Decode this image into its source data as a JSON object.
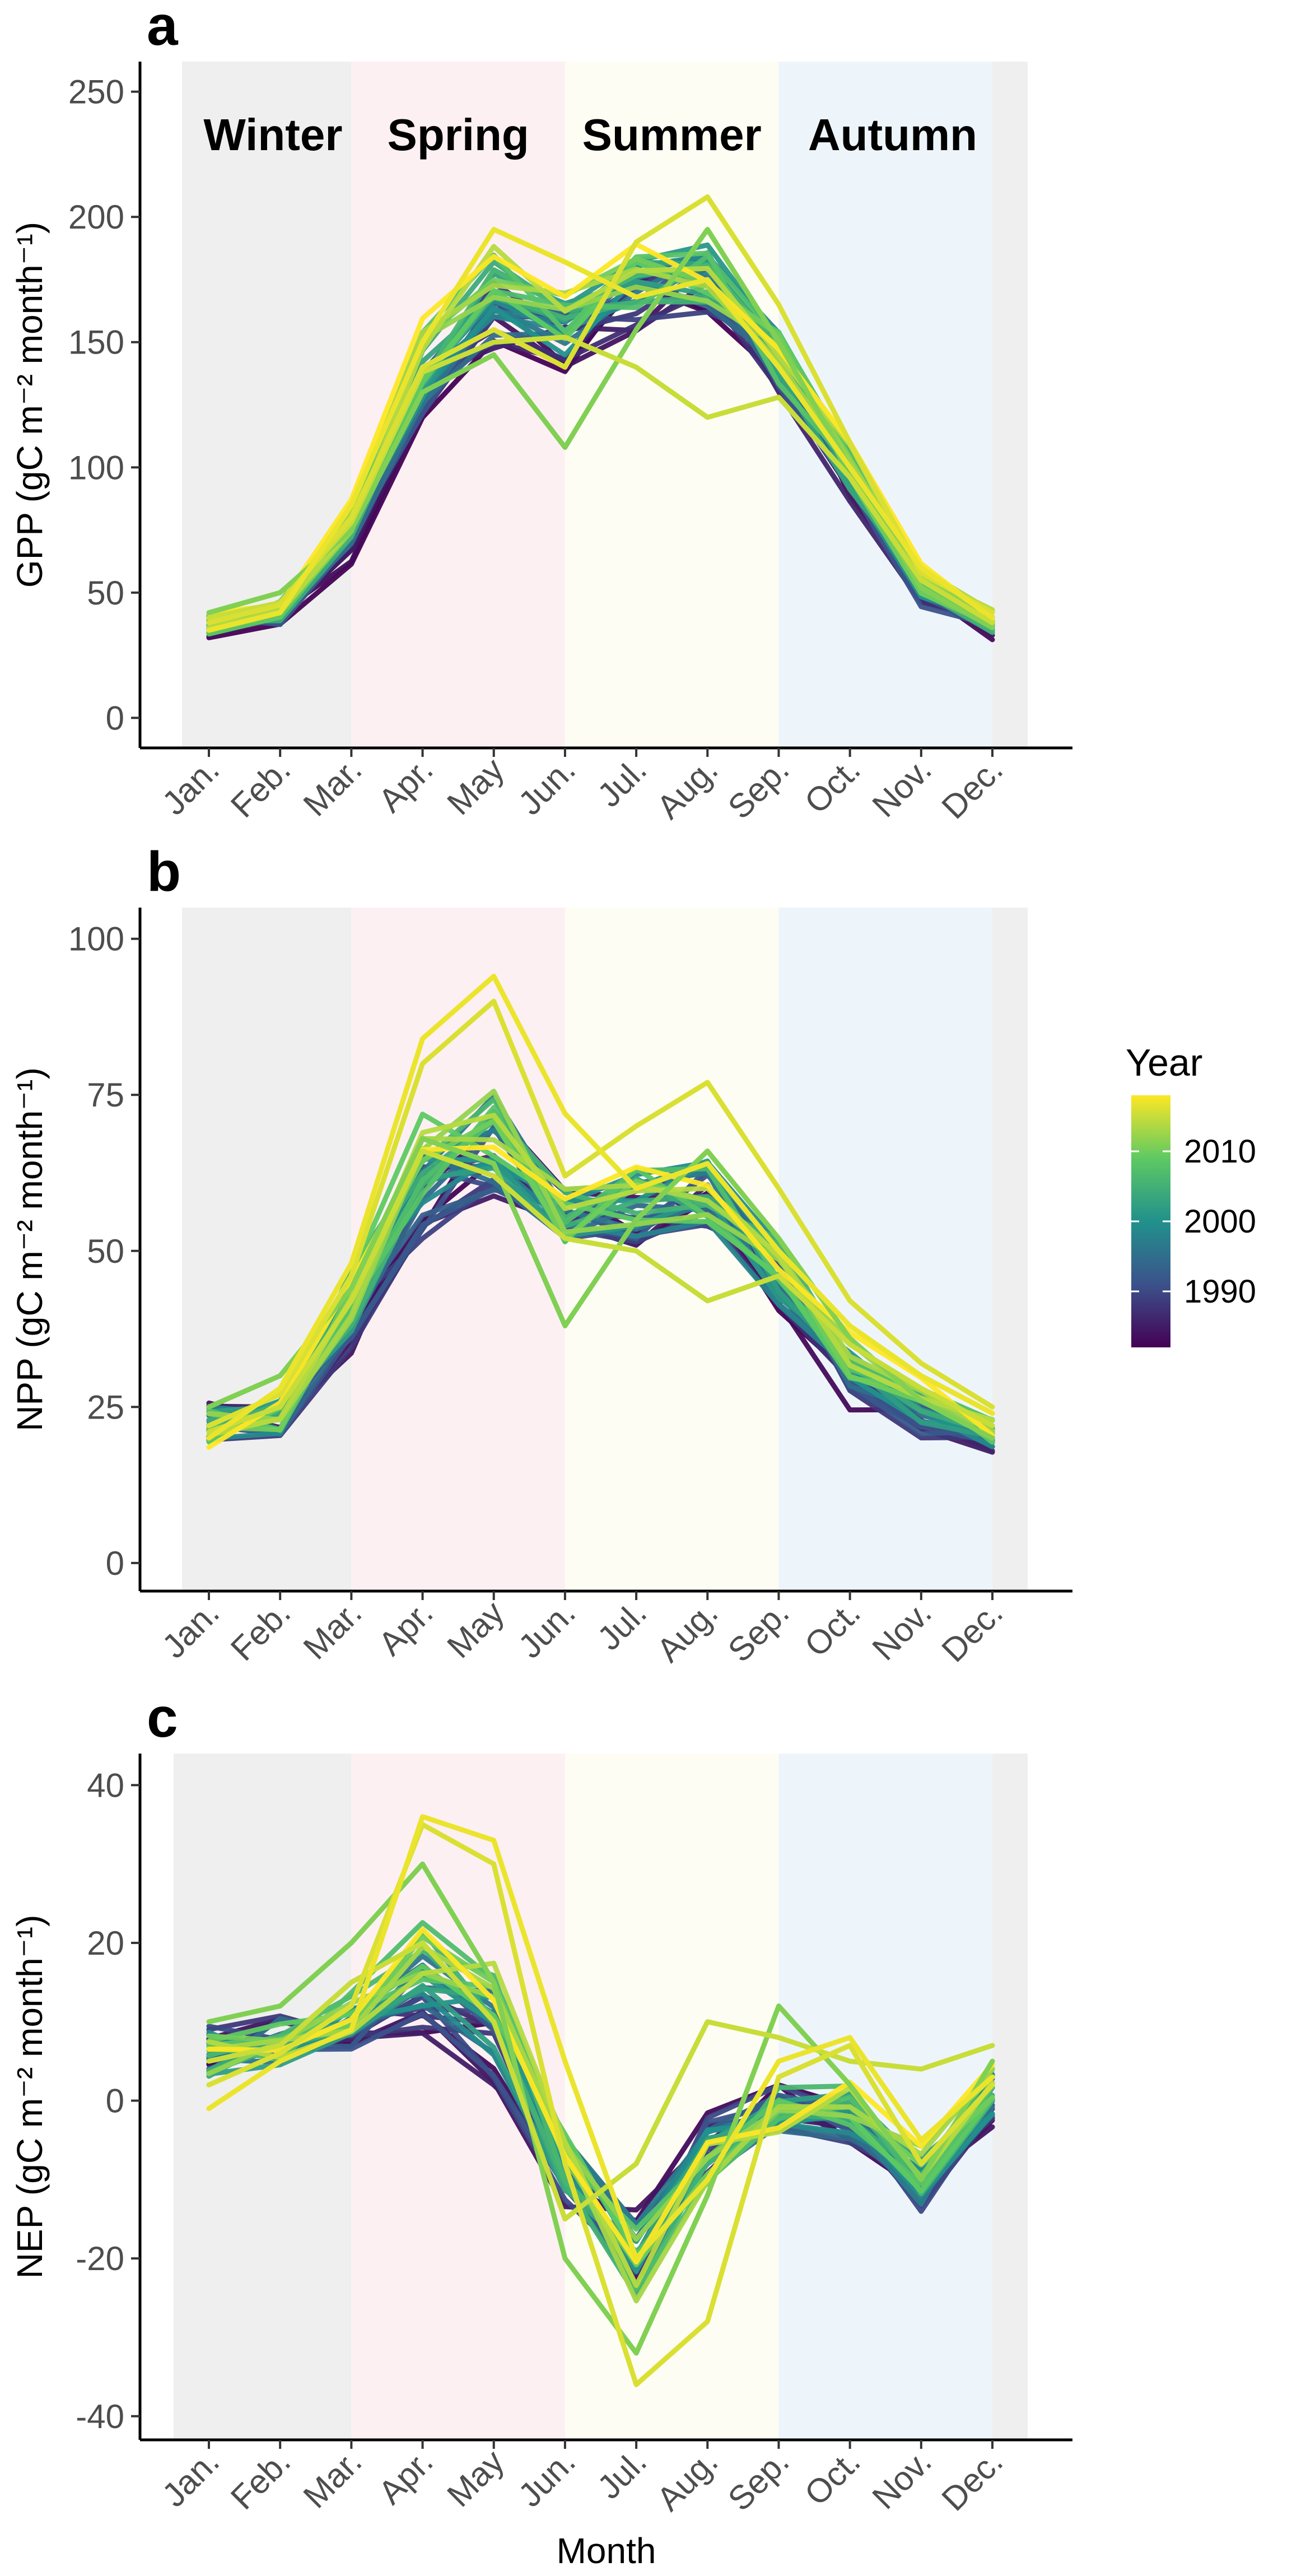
{
  "legend": {
    "title": "Year",
    "ticks": [
      "2010",
      "2000",
      "1990"
    ],
    "tick_values": [
      2010,
      2000,
      1990
    ],
    "range": [
      1982,
      2018
    ],
    "palette": [
      "#440154",
      "#3b528b",
      "#21918c",
      "#5ec962",
      "#fde725"
    ]
  },
  "season_colors": {
    "Winter": "#efefef",
    "Spring": "#fdf0f3",
    "Summer": "#fdfdf4",
    "Autumn": "#eef5fa"
  },
  "chart_data": [
    {
      "type": "line",
      "panel_label": "a",
      "title": "",
      "xlabel": "",
      "ylabel": "GPP (gC m⁻² month⁻¹)",
      "categories": [
        "Jan.",
        "Feb.",
        "Mar.",
        "Apr.",
        "May",
        "Jun.",
        "Jul.",
        "Aug.",
        "Sep.",
        "Oct.",
        "Nov.",
        "Dec."
      ],
      "ylim": [
        -12,
        262
      ],
      "yticks": [
        0,
        50,
        100,
        150,
        200,
        250
      ],
      "ytick_labels": [
        "0",
        "50",
        "100",
        "150",
        "200",
        "250"
      ],
      "seasons": [
        {
          "name": "Winter",
          "label": "Winter",
          "start": 0,
          "end": 2
        },
        {
          "name": "Spring",
          "label": "Spring",
          "start": 2,
          "end": 5
        },
        {
          "name": "Summer",
          "label": "Summer",
          "start": 5,
          "end": 8
        },
        {
          "name": "Autumn",
          "label": "Autumn",
          "start": 8,
          "end": 11
        },
        {
          "name": "Winter",
          "label": "",
          "start": 11,
          "end": 11.5
        }
      ],
      "years": [
        1982,
        2018
      ],
      "series_start": [
        36,
        40,
        68,
        125,
        158,
        148,
        165,
        172,
        140,
        92,
        48,
        35
      ],
      "series_end": [
        38,
        44,
        84,
        150,
        178,
        162,
        178,
        180,
        146,
        106,
        56,
        40
      ],
      "spread": [
        4,
        4,
        7,
        11,
        13,
        11,
        12,
        13,
        11,
        9,
        6,
        4
      ],
      "highlights": [
        {
          "year": 2017,
          "values": [
            35,
            42,
            85,
            150,
            195,
            182,
            168,
            175,
            140,
            100,
            60,
            40
          ]
        },
        {
          "year": 2016,
          "values": [
            38,
            45,
            80,
            140,
            155,
            140,
            190,
            208,
            165,
            110,
            58,
            42
          ]
        },
        {
          "year": 2015,
          "values": [
            40,
            46,
            78,
            138,
            150,
            152,
            140,
            120,
            128,
            96,
            55,
            38
          ]
        },
        {
          "year": 2011,
          "values": [
            42,
            50,
            75,
            130,
            145,
            108,
            155,
            195,
            150,
            100,
            52,
            36
          ]
        }
      ]
    },
    {
      "type": "line",
      "panel_label": "b",
      "title": "",
      "xlabel": "",
      "ylabel": "NPP (gC m⁻² month⁻¹)",
      "categories": [
        "Jan.",
        "Feb.",
        "Mar.",
        "Apr.",
        "May",
        "Jun.",
        "Jul.",
        "Aug.",
        "Sep.",
        "Oct.",
        "Nov.",
        "Dec."
      ],
      "ylim": [
        -4.5,
        105
      ],
      "yticks": [
        0,
        25,
        50,
        75,
        100
      ],
      "ytick_labels": [
        "0",
        "25",
        "50",
        "75",
        "100"
      ],
      "seasons": [
        {
          "name": "Winter",
          "label": "",
          "start": 0,
          "end": 2
        },
        {
          "name": "Spring",
          "label": "",
          "start": 2,
          "end": 5
        },
        {
          "name": "Summer",
          "label": "",
          "start": 5,
          "end": 8
        },
        {
          "name": "Autumn",
          "label": "",
          "start": 8,
          "end": 11
        },
        {
          "name": "Winter",
          "label": "",
          "start": 11,
          "end": 11.5
        }
      ],
      "years": [
        1982,
        2018
      ],
      "series_start": [
        23,
        22,
        38,
        55,
        65,
        55,
        55,
        58,
        45,
        28,
        22,
        19
      ],
      "series_end": [
        21,
        25,
        45,
        70,
        72,
        57,
        60,
        60,
        48,
        34,
        28,
        22
      ],
      "spread": [
        3,
        3,
        5,
        7,
        8,
        5,
        5,
        6,
        5,
        4,
        3,
        2
      ],
      "highlights": [
        {
          "year": 2017,
          "values": [
            20,
            28,
            48,
            84,
            94,
            72,
            60,
            64,
            50,
            38,
            30,
            24
          ]
        },
        {
          "year": 2016,
          "values": [
            22,
            27,
            46,
            80,
            90,
            62,
            70,
            77,
            60,
            42,
            32,
            25
          ]
        },
        {
          "year": 2015,
          "values": [
            21,
            25,
            42,
            66,
            62,
            52,
            50,
            42,
            46,
            35,
            28,
            22
          ]
        },
        {
          "year": 2011,
          "values": [
            25,
            30,
            44,
            68,
            64,
            38,
            55,
            66,
            52,
            36,
            26,
            20
          ]
        }
      ]
    },
    {
      "type": "line",
      "panel_label": "c",
      "title": "",
      "xlabel": "Month",
      "ylabel": "NEP (gC m⁻² month⁻¹)",
      "categories": [
        "Jan.",
        "Feb.",
        "Mar.",
        "Apr.",
        "May",
        "Jun.",
        "Jul.",
        "Aug.",
        "Sep.",
        "Oct.",
        "Nov.",
        "Dec."
      ],
      "ylim": [
        -43,
        44
      ],
      "yticks": [
        -40,
        -20,
        0,
        20,
        40
      ],
      "ytick_labels": [
        "-40",
        "-20",
        "0",
        "20",
        "40"
      ],
      "seasons": [
        {
          "name": "Winter",
          "label": "",
          "start": -0.5,
          "end": 2
        },
        {
          "name": "Spring",
          "label": "",
          "start": 2,
          "end": 5
        },
        {
          "name": "Summer",
          "label": "",
          "start": 5,
          "end": 8
        },
        {
          "name": "Autumn",
          "label": "",
          "start": 8,
          "end": 11
        },
        {
          "name": "Winter",
          "label": "",
          "start": 11,
          "end": 11.5
        }
      ],
      "years": [
        1982,
        2018
      ],
      "series_start": [
        7,
        8,
        8,
        12,
        6,
        -10,
        -18,
        -5,
        -1,
        -3,
        -12,
        -1
      ],
      "series_end": [
        5,
        7,
        12,
        22,
        14,
        -6,
        -22,
        -8,
        -1,
        0,
        -8,
        2
      ],
      "spread": [
        3,
        3,
        3,
        5,
        5,
        4,
        5,
        4,
        3,
        3,
        3,
        3
      ],
      "highlights": [
        {
          "year": 2017,
          "values": [
            -1,
            5,
            9,
            36,
            33,
            5,
            -20,
            -10,
            5,
            8,
            -5,
            3
          ]
        },
        {
          "year": 2016,
          "values": [
            2,
            6,
            12,
            35,
            30,
            -8,
            -36,
            -28,
            3,
            7,
            -8,
            2
          ]
        },
        {
          "year": 2015,
          "values": [
            5,
            7,
            15,
            20,
            10,
            -15,
            -8,
            10,
            8,
            5,
            4,
            7
          ]
        },
        {
          "year": 2011,
          "values": [
            10,
            12,
            20,
            30,
            15,
            -20,
            -32,
            -12,
            12,
            2,
            -10,
            5
          ]
        }
      ]
    }
  ]
}
